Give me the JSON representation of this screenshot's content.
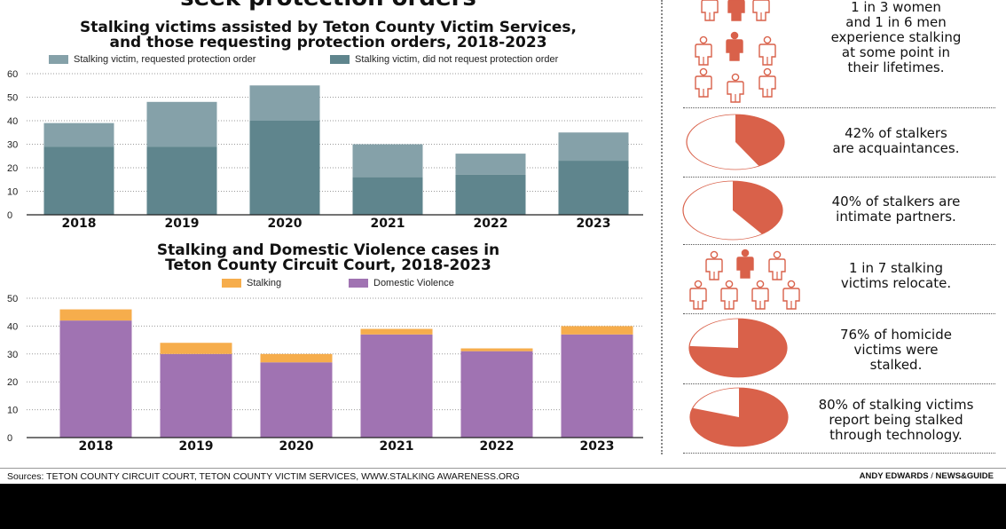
{
  "top_cutoff_title": "seek protection orders",
  "chart_data": [
    {
      "type": "bar",
      "stacked": true,
      "title_lines": [
        "Stalking victims assisted by Teton County Victim Services,",
        "and those requesting protection orders, 2018-2023"
      ],
      "categories": [
        "2018",
        "2019",
        "2020",
        "2021",
        "2022",
        "2023"
      ],
      "series": [
        {
          "name": "Stalking victim, did not request protection order",
          "values": [
            29,
            29,
            40,
            16,
            17,
            23
          ],
          "color": "#5f858d"
        },
        {
          "name": "Stalking victim, requested protection order",
          "values": [
            10,
            19,
            15,
            14,
            9,
            12
          ],
          "color": "#85a1a9"
        }
      ],
      "legend_order": [
        1,
        0
      ],
      "ylim": [
        0,
        60
      ],
      "yticks": [
        "0",
        "10",
        "20",
        "30",
        "40",
        "50",
        "60"
      ],
      "grid": true,
      "legend_placement": "top"
    },
    {
      "type": "bar",
      "stacked": true,
      "title_lines": [
        "Stalking and Domestic Violence cases in",
        "Teton County Circuit Court, 2018-2023"
      ],
      "categories": [
        "2018",
        "2019",
        "2020",
        "2021",
        "2022",
        "2023"
      ],
      "series": [
        {
          "name": "Domestic Violence",
          "values": [
            42,
            30,
            27,
            37,
            31,
            37
          ],
          "color": "#a073b2"
        },
        {
          "name": "Stalking",
          "values": [
            4,
            4,
            3,
            2,
            1,
            3
          ],
          "color": "#f6ad4c"
        }
      ],
      "legend_order": [
        1,
        0
      ],
      "ylim": [
        0,
        50
      ],
      "yticks": [
        "0",
        "10",
        "20",
        "30",
        "40",
        "50"
      ],
      "grid": true,
      "legend_placement": "top"
    }
  ],
  "sidebar": {
    "accent_color": "#d9614a",
    "facts": [
      {
        "text": [
          "1 in 3 women",
          "and 1 in 6 men",
          "experience stalking",
          "at some point in",
          "their lifetimes."
        ],
        "graphic": "people-icons"
      },
      {
        "text": [
          "42% of stalkers",
          "are acquaintances."
        ],
        "graphic": "pie",
        "percent": 42
      },
      {
        "text": [
          "40% of stalkers are",
          "intimate partners."
        ],
        "graphic": "pie",
        "percent": 40
      },
      {
        "text": [
          "1 in 7 stalking",
          "victims relocate."
        ],
        "graphic": "people-icons"
      },
      {
        "text": [
          "76% of homicide",
          "victims were",
          "stalked."
        ],
        "graphic": "pie",
        "percent": 76
      },
      {
        "text": [
          "80% of stalking victims",
          "report being stalked",
          "through technology."
        ],
        "graphic": "pie",
        "percent": 80
      }
    ]
  },
  "footer": {
    "sources": "Sources: TETON COUNTY CIRCUIT COURT, TETON COUNTY VICTIM SERVICES, WWW.STALKING AWARENESS.ORG",
    "credit_name": "ANDY EDWARDS",
    "credit_sep": " / ",
    "credit_org": "NEWS&GUIDE"
  }
}
